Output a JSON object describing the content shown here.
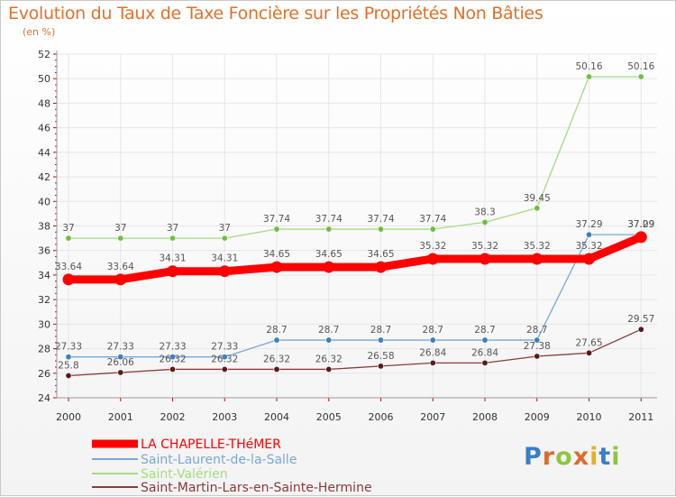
{
  "chart_data": {
    "type": "line",
    "title": "Evolution du Taux de Taxe Foncière sur les Propriétés Non Bâties",
    "subtitle": "(en %)",
    "x": [
      "2000",
      "2001",
      "2002",
      "2003",
      "2004",
      "2005",
      "2006",
      "2007",
      "2008",
      "2009",
      "2010",
      "2011"
    ],
    "ylim": [
      24,
      52
    ],
    "yticks": [
      24,
      26,
      28,
      30,
      32,
      34,
      36,
      38,
      40,
      42,
      44,
      46,
      48,
      50,
      52
    ],
    "series": [
      {
        "name": "LA CHAPELLE-THéMER",
        "color": "#ff0000",
        "emphasis": true,
        "values": [
          33.64,
          33.64,
          34.31,
          34.31,
          34.65,
          34.65,
          34.65,
          35.32,
          35.32,
          35.32,
          35.32,
          37.09
        ],
        "labels": [
          "33.64",
          "33.64",
          "34.31",
          "34.31",
          "34.65",
          "34.65",
          "34.65",
          "35.32",
          "35.32",
          "35.32",
          "35.32",
          "37.09"
        ]
      },
      {
        "name": "Saint-Laurent-de-la-Salle",
        "color": "#7aa7d6",
        "marker": "#3d7fc1",
        "values": [
          27.33,
          27.33,
          27.33,
          27.33,
          28.7,
          28.7,
          28.7,
          28.7,
          28.7,
          28.7,
          37.29,
          37.29
        ],
        "labels": [
          "27.33",
          "27.33",
          "27.33",
          "27.33",
          "28.7",
          "28.7",
          "28.7",
          "28.7",
          "28.7",
          "28.7",
          "37.29",
          "37.29"
        ]
      },
      {
        "name": "Saint-Valérien",
        "color": "#a4dc82",
        "marker": "#6cc13a",
        "values": [
          37,
          37,
          37,
          37,
          37.74,
          37.74,
          37.74,
          37.74,
          38.3,
          39.45,
          50.16,
          50.16
        ],
        "labels": [
          "37",
          "37",
          "37",
          "37",
          "37.74",
          "37.74",
          "37.74",
          "37.74",
          "38.3",
          "39.45",
          "50.16",
          "50.16"
        ]
      },
      {
        "name": "Saint-Martin-Lars-en-Sainte-Hermine",
        "color": "#8a3a3a",
        "marker": "#5a1a1a",
        "values": [
          25.8,
          26.06,
          26.32,
          26.32,
          26.32,
          26.32,
          26.58,
          26.84,
          26.84,
          27.38,
          27.65,
          29.57
        ],
        "labels": [
          "25.8",
          "26.06",
          "26.32",
          "26.32",
          "26.32",
          "26.32",
          "26.58",
          "26.84",
          "26.84",
          "27.38",
          "27.65",
          "29.57"
        ]
      }
    ]
  },
  "logo": {
    "text": "Proxiti"
  }
}
